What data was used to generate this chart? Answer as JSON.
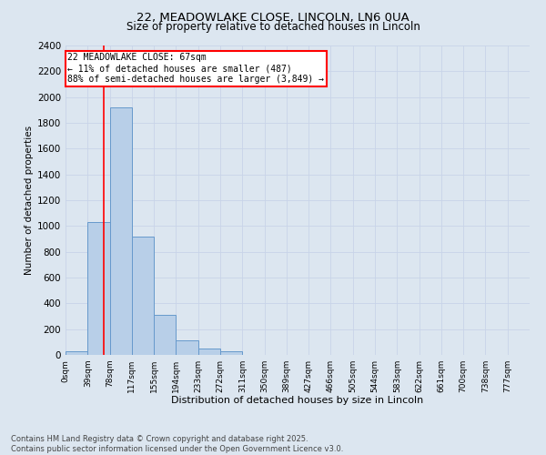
{
  "title_line1": "22, MEADOWLAKE CLOSE, LINCOLN, LN6 0UA",
  "title_line2": "Size of property relative to detached houses in Lincoln",
  "xlabel": "Distribution of detached houses by size in Lincoln",
  "ylabel": "Number of detached properties",
  "bin_labels": [
    "0sqm",
    "39sqm",
    "78sqm",
    "117sqm",
    "155sqm",
    "194sqm",
    "233sqm",
    "272sqm",
    "311sqm",
    "350sqm",
    "389sqm",
    "427sqm",
    "466sqm",
    "505sqm",
    "544sqm",
    "583sqm",
    "622sqm",
    "661sqm",
    "700sqm",
    "738sqm",
    "777sqm"
  ],
  "bar_values": [
    25,
    1030,
    1920,
    920,
    310,
    110,
    50,
    25,
    0,
    0,
    0,
    0,
    0,
    0,
    0,
    0,
    0,
    0,
    0,
    0
  ],
  "bar_color": "#b8cfe8",
  "bar_edge_color": "#6699cc",
  "property_line_x": 67,
  "annotation_text": "22 MEADOWLAKE CLOSE: 67sqm\n← 11% of detached houses are smaller (487)\n88% of semi-detached houses are larger (3,849) →",
  "annotation_box_color": "white",
  "annotation_box_edge_color": "red",
  "vline_color": "red",
  "ylim": [
    0,
    2400
  ],
  "yticks": [
    0,
    200,
    400,
    600,
    800,
    1000,
    1200,
    1400,
    1600,
    1800,
    2000,
    2200,
    2400
  ],
  "grid_color": "#c8d4e8",
  "bg_color": "#dce6f0",
  "footnote": "Contains HM Land Registry data © Crown copyright and database right 2025.\nContains public sector information licensed under the Open Government Licence v3.0.",
  "bin_width": 39,
  "n_bins": 20
}
